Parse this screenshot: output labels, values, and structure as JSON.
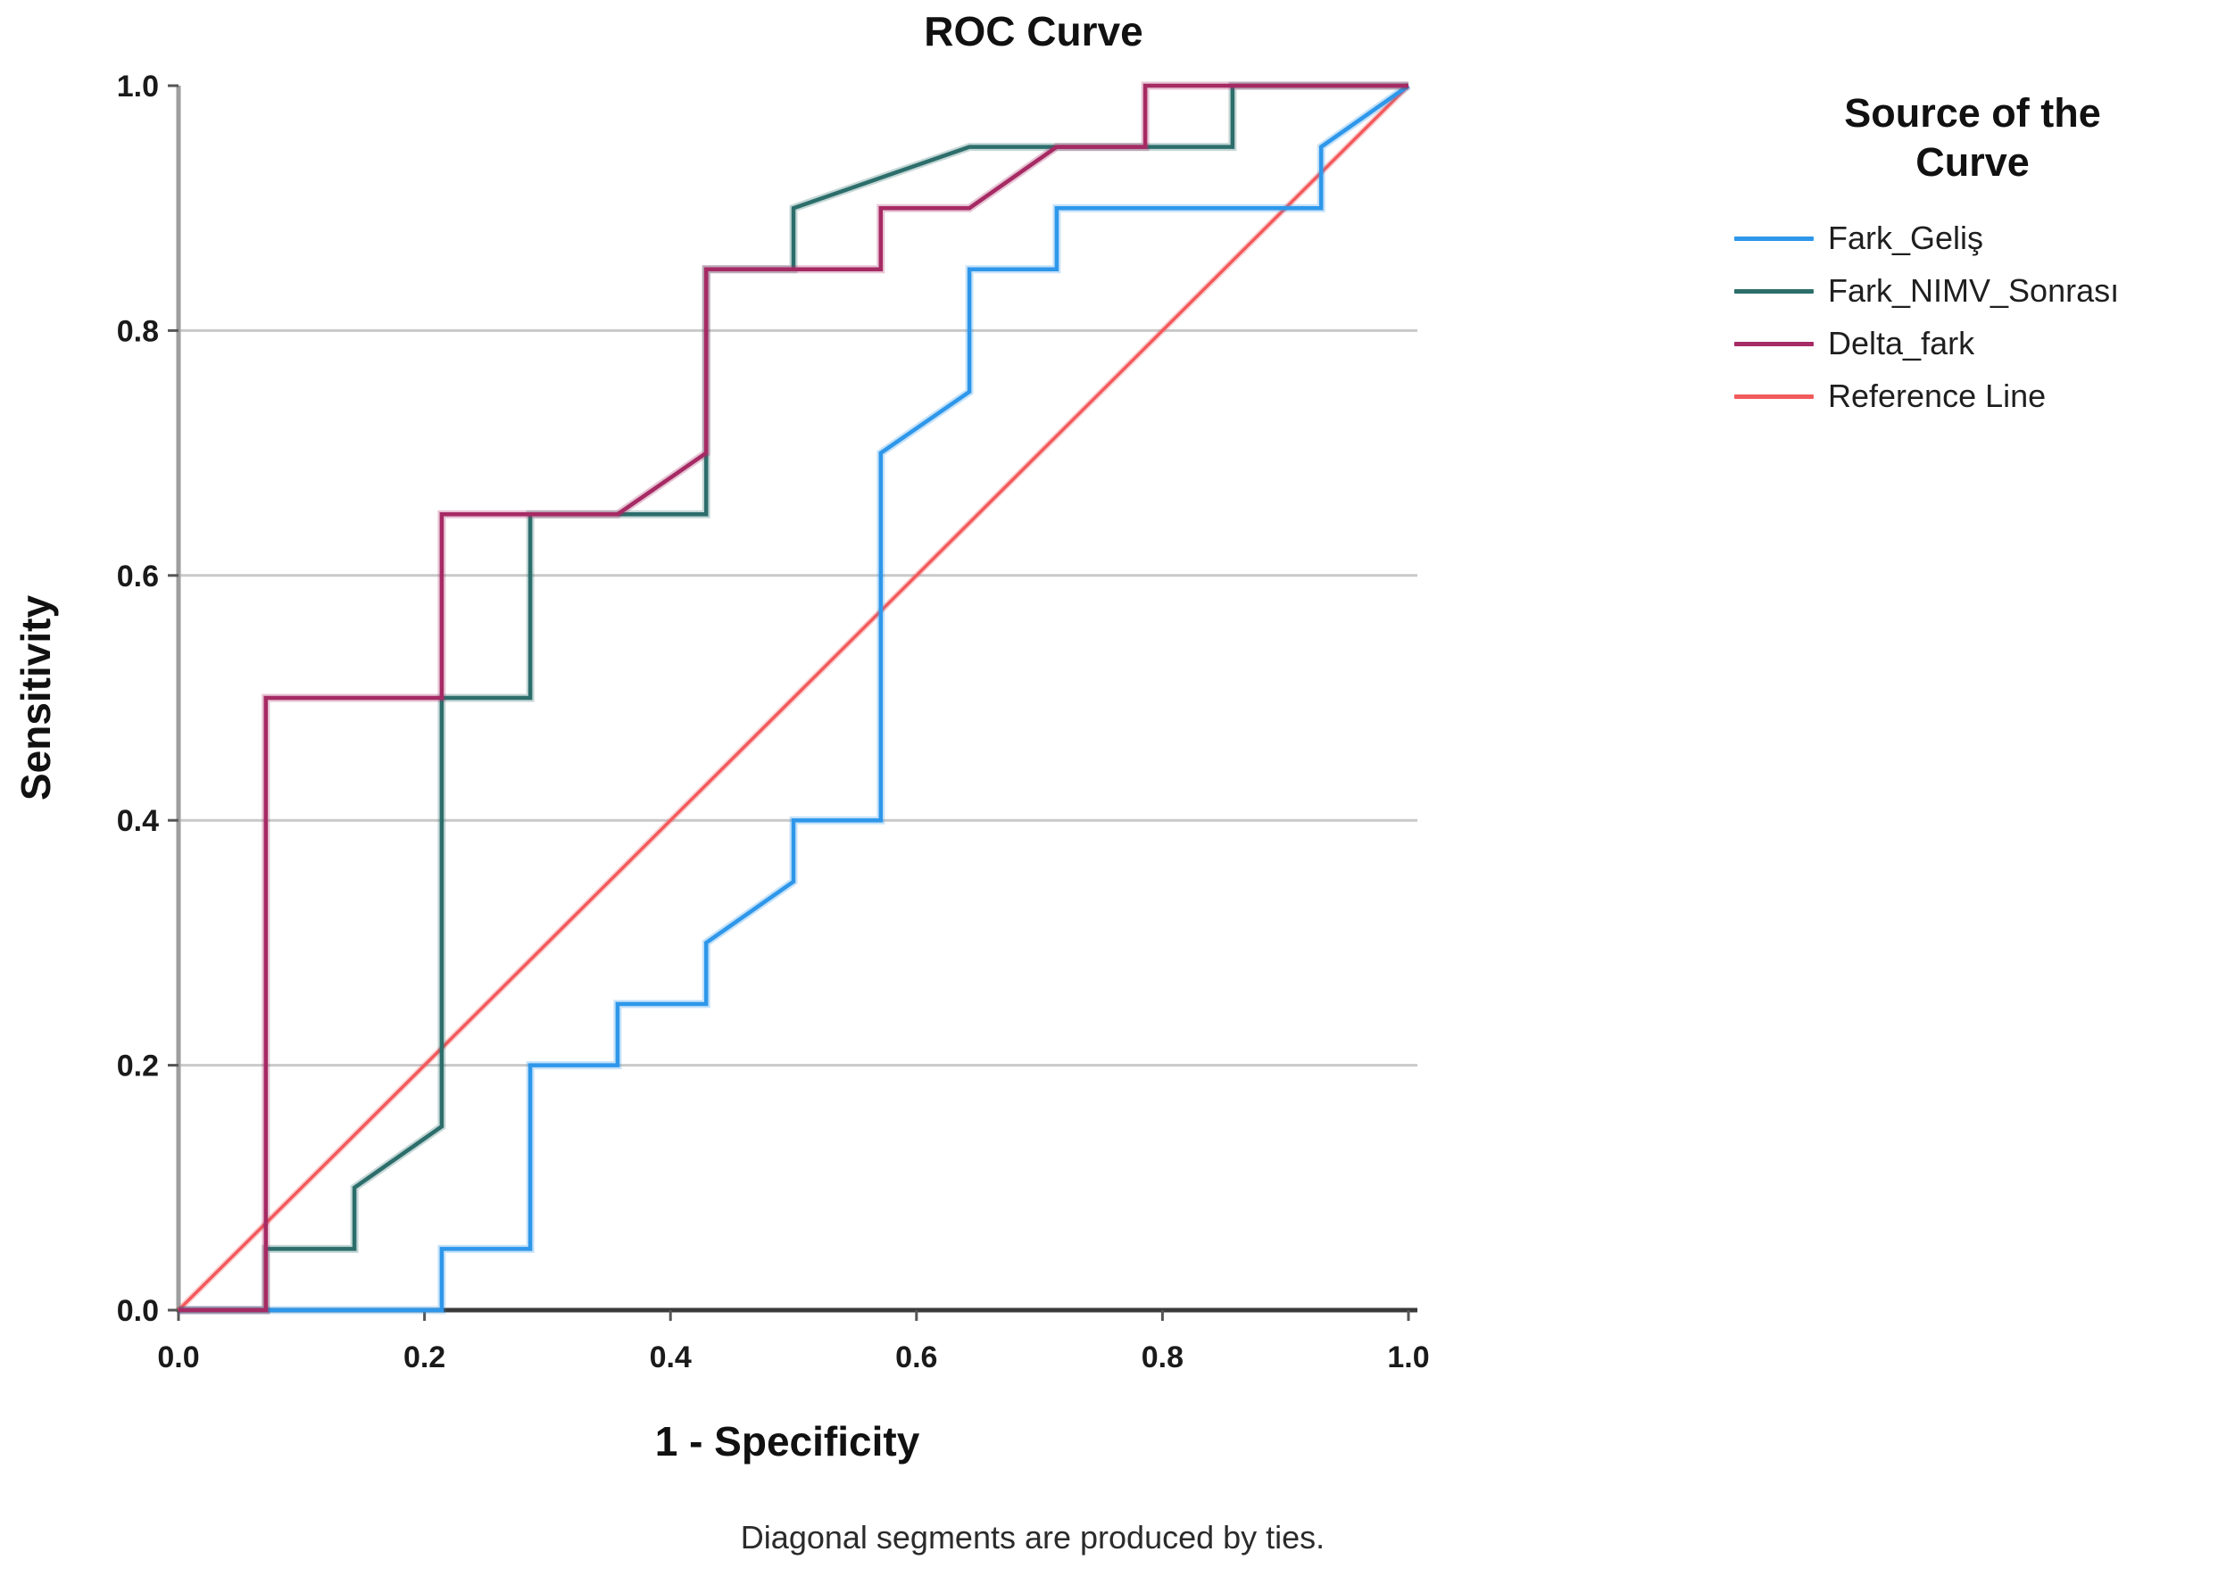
{
  "title": "ROC Curve",
  "axes": {
    "x_label": "1 - Specificity",
    "y_label": "Sensitivity",
    "x_tick_values": [
      0,
      0.2,
      0.4,
      0.6,
      0.8,
      1.0
    ],
    "x_tick_labels": [
      "0.0",
      "0.2",
      "0.4",
      "0.6",
      "0.8",
      "1.0"
    ],
    "y_tick_values": [
      0,
      0.2,
      0.4,
      0.6,
      0.8,
      1.0
    ],
    "y_tick_labels": [
      "0.0",
      "0.2",
      "0.4",
      "0.6",
      "0.8",
      "1.0"
    ],
    "y_gridlines": [
      0.2,
      0.4,
      0.6,
      0.8
    ]
  },
  "legend": {
    "title": "Source of the Curve",
    "title_lines": [
      "Source of the",
      "Curve"
    ],
    "entries": [
      {
        "label": "Fark_Geliş",
        "color": "#2e97ea"
      },
      {
        "label": "Fark_NIMV_Sonrası",
        "color": "#2c6e6b"
      },
      {
        "label": "Delta_fark",
        "color": "#a62a64"
      },
      {
        "label": "Reference Line",
        "color": "#f25a5c"
      }
    ]
  },
  "footnote": "Diagonal segments are produced by ties.",
  "colors": {
    "grid": "#c9c9c9",
    "x_axis": "#3a3a3a",
    "y_axis": "#9e9e9e",
    "tick": "#555555",
    "tick_label": "#1a1a1a"
  },
  "chart_data": {
    "type": "line",
    "subtype": "roc-step-curves",
    "title": "ROC Curve",
    "xlabel": "1 - Specificity",
    "ylabel": "Sensitivity",
    "xlim": [
      0,
      1
    ],
    "ylim": [
      0,
      1
    ],
    "grid": "horizontal gridlines at 0.2, 0.4, 0.6, 0.8",
    "legend_position": "right",
    "draw_order": [
      "Reference Line",
      "Fark_Geliş",
      "Fark_NIMV_Sonrası",
      "Delta_fark"
    ],
    "series": [
      {
        "name": "Fark_Geliş",
        "color": "#2e97ea",
        "points": [
          [
            0,
            0
          ],
          [
            0.214,
            0
          ],
          [
            0.214,
            0.05
          ],
          [
            0.286,
            0.05
          ],
          [
            0.286,
            0.2
          ],
          [
            0.357,
            0.2
          ],
          [
            0.357,
            0.25
          ],
          [
            0.429,
            0.25
          ],
          [
            0.429,
            0.3
          ],
          [
            0.5,
            0.35
          ],
          [
            0.5,
            0.4
          ],
          [
            0.571,
            0.4
          ],
          [
            0.571,
            0.7
          ],
          [
            0.643,
            0.75
          ],
          [
            0.643,
            0.85
          ],
          [
            0.714,
            0.85
          ],
          [
            0.714,
            0.9
          ],
          [
            0.929,
            0.9
          ],
          [
            0.929,
            0.95
          ],
          [
            1,
            1
          ]
        ]
      },
      {
        "name": "Fark_NIMV_Sonrası",
        "color": "#2c6e6b",
        "points": [
          [
            0,
            0
          ],
          [
            0.071,
            0
          ],
          [
            0.071,
            0.05
          ],
          [
            0.143,
            0.05
          ],
          [
            0.143,
            0.1
          ],
          [
            0.214,
            0.15
          ],
          [
            0.214,
            0.5
          ],
          [
            0.286,
            0.5
          ],
          [
            0.286,
            0.65
          ],
          [
            0.429,
            0.65
          ],
          [
            0.429,
            0.85
          ],
          [
            0.5,
            0.85
          ],
          [
            0.5,
            0.9
          ],
          [
            0.643,
            0.95
          ],
          [
            0.857,
            0.95
          ],
          [
            0.857,
            1
          ],
          [
            1,
            1
          ]
        ]
      },
      {
        "name": "Delta_fark",
        "color": "#a62a64",
        "points": [
          [
            0,
            0
          ],
          [
            0.071,
            0
          ],
          [
            0.071,
            0.5
          ],
          [
            0.214,
            0.5
          ],
          [
            0.214,
            0.65
          ],
          [
            0.357,
            0.65
          ],
          [
            0.429,
            0.7
          ],
          [
            0.429,
            0.85
          ],
          [
            0.571,
            0.85
          ],
          [
            0.571,
            0.9
          ],
          [
            0.643,
            0.9
          ],
          [
            0.714,
            0.95
          ],
          [
            0.786,
            0.95
          ],
          [
            0.786,
            1
          ],
          [
            1,
            1
          ]
        ]
      },
      {
        "name": "Reference Line",
        "color": "#f25a5c",
        "points": [
          [
            0,
            0
          ],
          [
            1,
            1
          ]
        ]
      }
    ]
  }
}
